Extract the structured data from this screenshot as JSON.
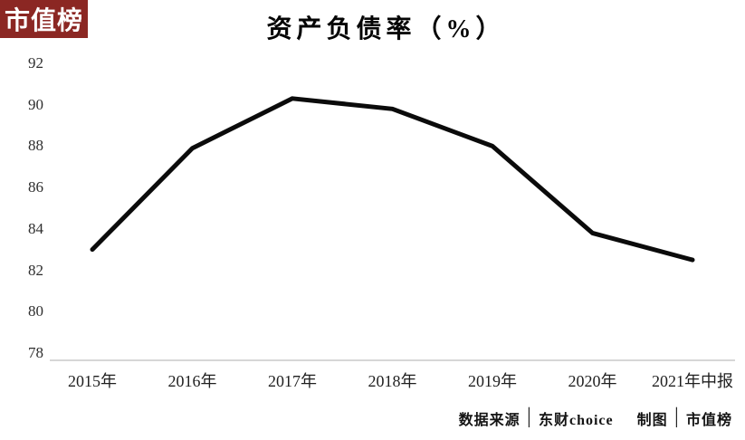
{
  "badge": {
    "label": "市值榜",
    "bg_color": "#8b2723",
    "text_color": "#ffffff"
  },
  "chart_data": {
    "type": "line",
    "title": "资产负债率（%）",
    "categories": [
      "2015年",
      "2016年",
      "2017年",
      "2018年",
      "2019年",
      "2020年",
      "2021年中报"
    ],
    "series": [
      {
        "name": "资产负债率",
        "values": [
          83.0,
          87.9,
          90.3,
          89.8,
          88.0,
          83.8,
          82.5
        ]
      }
    ],
    "y_ticks": [
      92,
      90,
      88,
      86,
      84,
      82,
      80,
      78
    ],
    "ylim": [
      78,
      92
    ],
    "xlabel": "",
    "ylabel": "",
    "grid": false,
    "legend_position": "none",
    "line_color": "#0b0b0b",
    "axis_line_color": "#c9c9c9"
  },
  "footer": {
    "source_label": "数据来源",
    "separator": "│",
    "source_value": "东财choice",
    "credit_label": "制图",
    "credit_value": "市值榜"
  }
}
